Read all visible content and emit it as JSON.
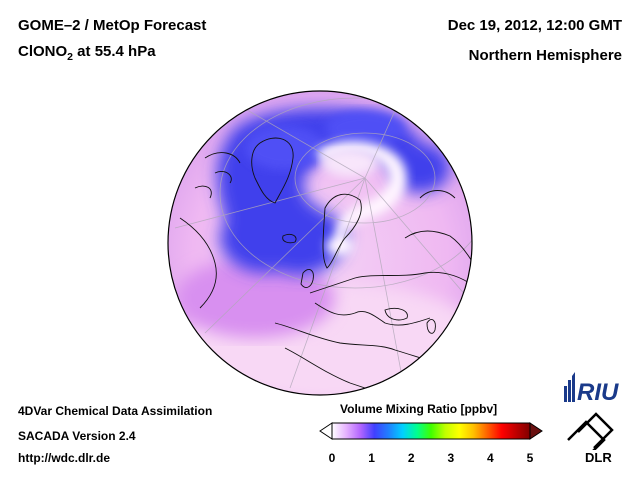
{
  "header": {
    "title_line1": "GOME–2 / MetOp Forecast",
    "species": "ClONO",
    "species_sub": "2",
    "species_rest": " at 55.4 hPa",
    "date": "Dec 19, 2012, 12:00 GMT",
    "region": "Northern Hemisphere"
  },
  "footer": {
    "line1": "4DVar Chemical Data Assimilation",
    "line2": "SACADA Version 2.4",
    "line3": "http://wdc.dlr.de"
  },
  "colorbar": {
    "title": "Volume Mixing Ratio [ppbv]",
    "ticks": [
      "0",
      "1",
      "2",
      "3",
      "4",
      "5"
    ],
    "min": 0,
    "max": 5,
    "colors": [
      "#ffffff",
      "#e6b3ff",
      "#b366ff",
      "#4040ff",
      "#2080ff",
      "#00d0ff",
      "#00ff90",
      "#40ff00",
      "#c0ff00",
      "#ffff00",
      "#ffc000",
      "#ff6000",
      "#ff0000",
      "#c00000",
      "#800000"
    ]
  },
  "colors": {
    "background": "#ffffff",
    "low_concentration": "#3a3af0",
    "mid_concentration": "#d89af0",
    "high_concentration": "#fff4ff"
  },
  "logos": {
    "riu": "RIU",
    "dlr": "DLR"
  },
  "map": {
    "projection": "orthographic",
    "coastlines": "black-line"
  }
}
